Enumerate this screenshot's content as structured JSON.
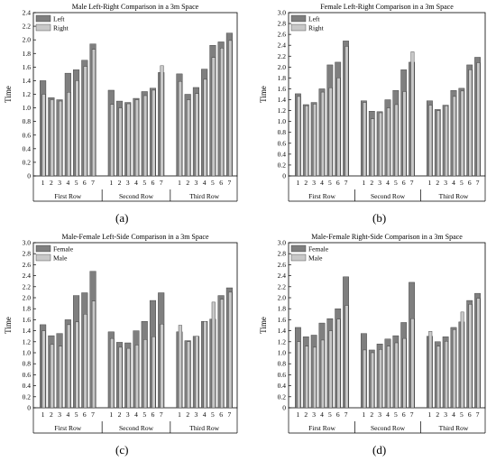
{
  "colors": {
    "series_a_fill": "#7f7f7f",
    "series_b_fill": "#c8c8c8",
    "edge": "#333333",
    "axis": "#000000"
  },
  "chart_data": [
    {
      "type": "bar",
      "panel_label": "(a)",
      "title": "Male Left-Right Comparison in a 3m Space",
      "ylabel": "Time",
      "ylim": [
        0,
        2.4
      ],
      "ytick_step": 0.2,
      "yticks": [
        "0",
        "0.2",
        "0.4",
        "0.6",
        "0.8",
        "1.0",
        "1.2",
        "1.4",
        "1.6",
        "1.8",
        "2.0",
        "2.2",
        "2.4"
      ],
      "groups": [
        "First Row",
        "Second Row",
        "Third Row"
      ],
      "categories": [
        "1",
        "2",
        "3",
        "4",
        "5",
        "6",
        "7"
      ],
      "legend": {
        "placement": "top-left"
      },
      "series": [
        {
          "name": "Left",
          "values": [
            [
              1.4,
              1.15,
              1.12,
              1.51,
              1.56,
              1.7,
              1.94
            ],
            [
              1.26,
              1.1,
              1.08,
              1.14,
              1.24,
              1.29,
              1.52
            ],
            [
              1.5,
              1.2,
              1.3,
              1.57,
              1.92,
              1.97,
              2.1
            ]
          ]
        },
        {
          "name": "Right",
          "values": [
            [
              1.2,
              1.12,
              1.1,
              1.23,
              1.4,
              1.61,
              1.86
            ],
            [
              1.05,
              1.0,
              1.06,
              1.12,
              1.18,
              1.26,
              1.62
            ],
            [
              1.39,
              1.12,
              1.21,
              1.42,
              1.74,
              1.88,
              1.99
            ]
          ]
        }
      ]
    },
    {
      "type": "bar",
      "panel_label": "(b)",
      "title": "Female Left-Right Comparison in a 3m Space",
      "ylabel": "Time",
      "ylim": [
        0,
        3.0
      ],
      "ytick_step": 0.2,
      "yticks": [
        "0",
        "0.2",
        "0.4",
        "0.6",
        "0.8",
        "1.0",
        "1.2",
        "1.4",
        "1.6",
        "1.8",
        "2.0",
        "2.2",
        "2.4",
        "2.6",
        "2.8",
        "3.0"
      ],
      "groups": [
        "First Row",
        "Second Row",
        "Third Row"
      ],
      "categories": [
        "1",
        "2",
        "3",
        "4",
        "5",
        "6",
        "7"
      ],
      "legend": {
        "placement": "top-left"
      },
      "series": [
        {
          "name": "Left",
          "values": [
            [
              1.51,
              1.31,
              1.35,
              1.6,
              2.04,
              2.09,
              2.48
            ],
            [
              1.38,
              1.19,
              1.18,
              1.4,
              1.57,
              1.95,
              2.09
            ],
            [
              1.38,
              1.22,
              1.3,
              1.57,
              1.61,
              2.04,
              2.18
            ]
          ]
        },
        {
          "name": "Right",
          "values": [
            [
              1.46,
              1.29,
              1.32,
              1.54,
              1.62,
              1.8,
              2.38
            ],
            [
              1.35,
              1.05,
              1.16,
              1.25,
              1.31,
              1.55,
              2.28
            ],
            [
              1.3,
              1.2,
              1.29,
              1.46,
              1.56,
              1.95,
              2.08
            ]
          ]
        }
      ]
    },
    {
      "type": "bar",
      "panel_label": "(c)",
      "title": "Male-Female Left-Side Comparison in a 3m Space",
      "ylabel": "Time",
      "ylim": [
        0,
        3.0
      ],
      "ytick_step": 0.2,
      "yticks": [
        "0",
        "0.2",
        "0.4",
        "0.6",
        "0.8",
        "1.0",
        "1.2",
        "1.4",
        "1.6",
        "1.8",
        "2.0",
        "2.2",
        "2.4",
        "2.6",
        "2.8",
        "3.0"
      ],
      "groups": [
        "First Row",
        "Second Row",
        "Third Row"
      ],
      "categories": [
        "1",
        "2",
        "3",
        "4",
        "5",
        "6",
        "7"
      ],
      "legend": {
        "placement": "top-left"
      },
      "series": [
        {
          "name": "Female",
          "values": [
            [
              1.51,
              1.31,
              1.35,
              1.6,
              2.04,
              2.09,
              2.48
            ],
            [
              1.38,
              1.19,
              1.18,
              1.4,
              1.57,
              1.95,
              2.09
            ],
            [
              1.38,
              1.22,
              1.3,
              1.57,
              1.61,
              2.04,
              2.18
            ]
          ]
        },
        {
          "name": "Male",
          "values": [
            [
              1.4,
              1.15,
              1.12,
              1.51,
              1.56,
              1.7,
              1.94
            ],
            [
              1.26,
              1.1,
              1.08,
              1.14,
              1.24,
              1.29,
              1.52
            ],
            [
              1.5,
              1.2,
              1.3,
              1.57,
              1.92,
              1.97,
              2.1
            ]
          ]
        }
      ]
    },
    {
      "type": "bar",
      "panel_label": "(d)",
      "title": "Male-Female Right-Side Comparison in a 3m Space",
      "ylabel": "Time",
      "ylim": [
        0,
        3.0
      ],
      "ytick_step": 0.2,
      "yticks": [
        "0",
        "0.2",
        "0.4",
        "0.6",
        "0.8",
        "1.0",
        "1.2",
        "1.4",
        "1.6",
        "1.8",
        "2.0",
        "2.2",
        "2.4",
        "2.6",
        "2.8",
        "3.0"
      ],
      "groups": [
        "First Row",
        "Second Row",
        "Third Row"
      ],
      "categories": [
        "1",
        "2",
        "3",
        "4",
        "5",
        "6",
        "7"
      ],
      "legend": {
        "placement": "top-left"
      },
      "series": [
        {
          "name": "Female",
          "values": [
            [
              1.46,
              1.29,
              1.32,
              1.54,
              1.62,
              1.8,
              2.38
            ],
            [
              1.35,
              1.05,
              1.16,
              1.25,
              1.31,
              1.55,
              2.28
            ],
            [
              1.3,
              1.2,
              1.29,
              1.46,
              1.56,
              1.95,
              2.08
            ]
          ]
        },
        {
          "name": "Male",
          "values": [
            [
              1.2,
              1.12,
              1.1,
              1.23,
              1.4,
              1.61,
              1.86
            ],
            [
              1.05,
              1.0,
              1.06,
              1.12,
              1.18,
              1.26,
              1.62
            ],
            [
              1.39,
              1.12,
              1.21,
              1.42,
              1.74,
              1.88,
              1.99
            ]
          ]
        }
      ]
    }
  ]
}
